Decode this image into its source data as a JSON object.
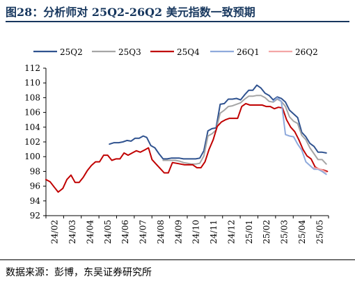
{
  "title": "图28：分析师对 25Q2-26Q2 美元指数一致预期",
  "source": "数据来源：彭博，东吴证券研究所",
  "chart_data": {
    "type": "line",
    "title": "图28：分析师对 25Q2-26Q2 美元指数一致预期",
    "xlabel": "",
    "ylabel": "",
    "ylim": [
      92,
      112
    ],
    "yticks": [
      92,
      94,
      96,
      98,
      100,
      102,
      104,
      106,
      108,
      110,
      112
    ],
    "xlim": [
      "2024-02-01",
      "2025-05-31"
    ],
    "x_tick_labels": [
      "24/02",
      "24/03",
      "24/04",
      "24/05",
      "24/06",
      "24/07",
      "24/08",
      "24/09",
      "24/10",
      "24/11",
      "24/12",
      "25/01",
      "25/02",
      "25/03",
      "25/04",
      "25/05"
    ],
    "legend_position": "top",
    "grid": false,
    "series": [
      {
        "name": "25Q2",
        "color": "#2f528f",
        "points": [
          [
            "2024-05-20",
            101.7
          ],
          [
            "2024-05-28",
            101.9
          ],
          [
            "2024-06-05",
            101.9
          ],
          [
            "2024-06-12",
            102.0
          ],
          [
            "2024-06-19",
            102.2
          ],
          [
            "2024-06-26",
            102.1
          ],
          [
            "2024-07-03",
            102.5
          ],
          [
            "2024-07-10",
            102.5
          ],
          [
            "2024-07-17",
            102.8
          ],
          [
            "2024-07-23",
            102.6
          ],
          [
            "2024-07-30",
            101.5
          ],
          [
            "2024-08-06",
            101.2
          ],
          [
            "2024-08-13",
            100.4
          ],
          [
            "2024-08-20",
            99.7
          ],
          [
            "2024-08-27",
            99.7
          ],
          [
            "2024-09-03",
            99.8
          ],
          [
            "2024-09-10",
            99.8
          ],
          [
            "2024-09-17",
            99.8
          ],
          [
            "2024-09-24",
            99.7
          ],
          [
            "2024-10-01",
            99.7
          ],
          [
            "2024-10-08",
            99.7
          ],
          [
            "2024-10-15",
            99.7
          ],
          [
            "2024-10-22",
            99.8
          ],
          [
            "2024-10-29",
            100.8
          ],
          [
            "2024-11-05",
            103.5
          ],
          [
            "2024-11-12",
            103.8
          ],
          [
            "2024-11-19",
            103.9
          ],
          [
            "2024-11-26",
            107.1
          ],
          [
            "2024-12-03",
            107.2
          ],
          [
            "2024-12-10",
            107.8
          ],
          [
            "2024-12-17",
            107.8
          ],
          [
            "2024-12-24",
            107.9
          ],
          [
            "2024-12-31",
            107.7
          ],
          [
            "2025-01-07",
            108.4
          ],
          [
            "2025-01-14",
            109.0
          ],
          [
            "2025-01-21",
            109.0
          ],
          [
            "2025-01-28",
            109.7
          ],
          [
            "2025-02-04",
            109.3
          ],
          [
            "2025-02-11",
            108.6
          ],
          [
            "2025-02-18",
            108.3
          ],
          [
            "2025-02-25",
            107.7
          ],
          [
            "2025-03-04",
            108.1
          ],
          [
            "2025-03-11",
            107.9
          ],
          [
            "2025-03-18",
            107.4
          ],
          [
            "2025-03-25",
            106.3
          ],
          [
            "2025-04-01",
            105.8
          ],
          [
            "2025-04-08",
            105.3
          ],
          [
            "2025-04-15",
            103.3
          ],
          [
            "2025-04-22",
            102.7
          ],
          [
            "2025-04-29",
            101.8
          ],
          [
            "2025-05-06",
            101.4
          ],
          [
            "2025-05-13",
            100.6
          ],
          [
            "2025-05-20",
            100.6
          ],
          [
            "2025-05-27",
            100.5
          ]
        ]
      },
      {
        "name": "25Q3",
        "color": "#a5a5a5",
        "points": [
          [
            "2024-08-20",
            99.5
          ],
          [
            "2024-08-27",
            99.5
          ],
          [
            "2024-09-03",
            99.5
          ],
          [
            "2024-09-10",
            99.5
          ],
          [
            "2024-09-17",
            99.4
          ],
          [
            "2024-09-24",
            99.2
          ],
          [
            "2024-10-01",
            99.1
          ],
          [
            "2024-10-08",
            99.0
          ],
          [
            "2024-10-15",
            99.0
          ],
          [
            "2024-10-22",
            99.1
          ],
          [
            "2024-10-29",
            100.1
          ],
          [
            "2024-11-05",
            102.8
          ],
          [
            "2024-11-12",
            103.1
          ],
          [
            "2024-11-19",
            103.6
          ],
          [
            "2024-11-26",
            105.9
          ],
          [
            "2024-12-03",
            106.3
          ],
          [
            "2024-12-10",
            106.8
          ],
          [
            "2024-12-17",
            106.9
          ],
          [
            "2024-12-24",
            107.1
          ],
          [
            "2024-12-31",
            107.3
          ],
          [
            "2025-01-07",
            107.8
          ],
          [
            "2025-01-14",
            108.2
          ],
          [
            "2025-01-21",
            108.2
          ],
          [
            "2025-01-28",
            108.3
          ],
          [
            "2025-02-04",
            108.3
          ],
          [
            "2025-02-11",
            108.0
          ],
          [
            "2025-02-18",
            107.5
          ],
          [
            "2025-02-25",
            107.4
          ],
          [
            "2025-03-04",
            107.8
          ],
          [
            "2025-03-11",
            107.5
          ],
          [
            "2025-03-18",
            106.8
          ],
          [
            "2025-03-25",
            105.4
          ],
          [
            "2025-04-01",
            104.8
          ],
          [
            "2025-04-08",
            104.5
          ],
          [
            "2025-04-15",
            102.9
          ],
          [
            "2025-04-22",
            102.3
          ],
          [
            "2025-04-29",
            101.2
          ],
          [
            "2025-05-06",
            100.4
          ],
          [
            "2025-05-13",
            99.6
          ],
          [
            "2025-05-20",
            99.6
          ],
          [
            "2025-05-27",
            99.0
          ]
        ]
      },
      {
        "name": "25Q4",
        "color": "#c00000",
        "points": [
          [
            "2024-02-01",
            96.9
          ],
          [
            "2024-02-08",
            96.6
          ],
          [
            "2024-02-15",
            95.9
          ],
          [
            "2024-02-22",
            95.2
          ],
          [
            "2024-03-01",
            95.7
          ],
          [
            "2024-03-08",
            96.9
          ],
          [
            "2024-03-15",
            97.5
          ],
          [
            "2024-03-22",
            96.5
          ],
          [
            "2024-03-29",
            96.5
          ],
          [
            "2024-04-05",
            97.2
          ],
          [
            "2024-04-12",
            98.1
          ],
          [
            "2024-04-19",
            98.8
          ],
          [
            "2024-04-26",
            99.3
          ],
          [
            "2024-05-03",
            99.3
          ],
          [
            "2024-05-10",
            100.2
          ],
          [
            "2024-05-17",
            100.2
          ],
          [
            "2024-05-24",
            99.5
          ],
          [
            "2024-05-31",
            99.7
          ],
          [
            "2024-06-07",
            99.7
          ],
          [
            "2024-06-14",
            100.5
          ],
          [
            "2024-06-21",
            100.2
          ],
          [
            "2024-06-28",
            100.5
          ],
          [
            "2024-07-05",
            100.8
          ],
          [
            "2024-07-12",
            100.6
          ],
          [
            "2024-07-19",
            100.9
          ],
          [
            "2024-07-26",
            101.2
          ],
          [
            "2024-08-01",
            99.6
          ],
          [
            "2024-08-08",
            99.0
          ],
          [
            "2024-08-15",
            98.4
          ],
          [
            "2024-08-22",
            97.8
          ],
          [
            "2024-08-29",
            97.8
          ],
          [
            "2024-09-05",
            99.2
          ],
          [
            "2024-09-12",
            99.1
          ],
          [
            "2024-09-19",
            99.0
          ],
          [
            "2024-09-26",
            98.9
          ],
          [
            "2024-10-03",
            98.9
          ],
          [
            "2024-10-10",
            98.9
          ],
          [
            "2024-10-17",
            98.5
          ],
          [
            "2024-10-24",
            98.5
          ],
          [
            "2024-10-31",
            99.3
          ],
          [
            "2024-11-07",
            101.0
          ],
          [
            "2024-11-14",
            102.3
          ],
          [
            "2024-11-21",
            104.1
          ],
          [
            "2024-11-28",
            104.7
          ],
          [
            "2024-12-05",
            105.0
          ],
          [
            "2024-12-12",
            105.2
          ],
          [
            "2024-12-19",
            105.2
          ],
          [
            "2024-12-26",
            105.2
          ],
          [
            "2025-01-02",
            106.8
          ],
          [
            "2025-01-09",
            107.2
          ],
          [
            "2025-01-16",
            107.0
          ],
          [
            "2025-01-23",
            107.0
          ],
          [
            "2025-01-30",
            107.0
          ],
          [
            "2025-02-06",
            107.0
          ],
          [
            "2025-02-13",
            106.8
          ],
          [
            "2025-02-20",
            106.8
          ],
          [
            "2025-02-27",
            106.5
          ],
          [
            "2025-03-06",
            106.7
          ],
          [
            "2025-03-13",
            106.6
          ],
          [
            "2025-03-20",
            105.0
          ],
          [
            "2025-03-27",
            104.0
          ],
          [
            "2025-04-03",
            103.4
          ],
          [
            "2025-04-10",
            102.3
          ],
          [
            "2025-04-17",
            101.0
          ],
          [
            "2025-04-24",
            100.1
          ],
          [
            "2025-05-01",
            99.7
          ],
          [
            "2025-05-08",
            98.6
          ],
          [
            "2025-05-15",
            98.3
          ],
          [
            "2025-05-22",
            98.2
          ],
          [
            "2025-05-29",
            98.0
          ]
        ]
      },
      {
        "name": "26Q1",
        "color": "#8faadc",
        "points": [
          [
            "2025-02-25",
            107.5
          ],
          [
            "2025-03-04",
            108.0
          ],
          [
            "2025-03-11",
            107.5
          ],
          [
            "2025-03-18",
            103.0
          ],
          [
            "2025-03-25",
            102.8
          ],
          [
            "2025-04-01",
            102.7
          ],
          [
            "2025-04-08",
            101.7
          ],
          [
            "2025-04-15",
            100.9
          ],
          [
            "2025-04-22",
            99.3
          ],
          [
            "2025-04-29",
            98.8
          ],
          [
            "2025-05-06",
            98.3
          ],
          [
            "2025-05-13",
            98.3
          ],
          [
            "2025-05-20",
            98.0
          ],
          [
            "2025-05-27",
            97.6
          ]
        ]
      },
      {
        "name": "26Q2",
        "color": "#f4a6a6",
        "points": [
          [
            "2025-05-06",
            98.5
          ],
          [
            "2025-05-13",
            98.4
          ],
          [
            "2025-05-20",
            98.2
          ],
          [
            "2025-05-27",
            97.9
          ]
        ]
      }
    ]
  }
}
